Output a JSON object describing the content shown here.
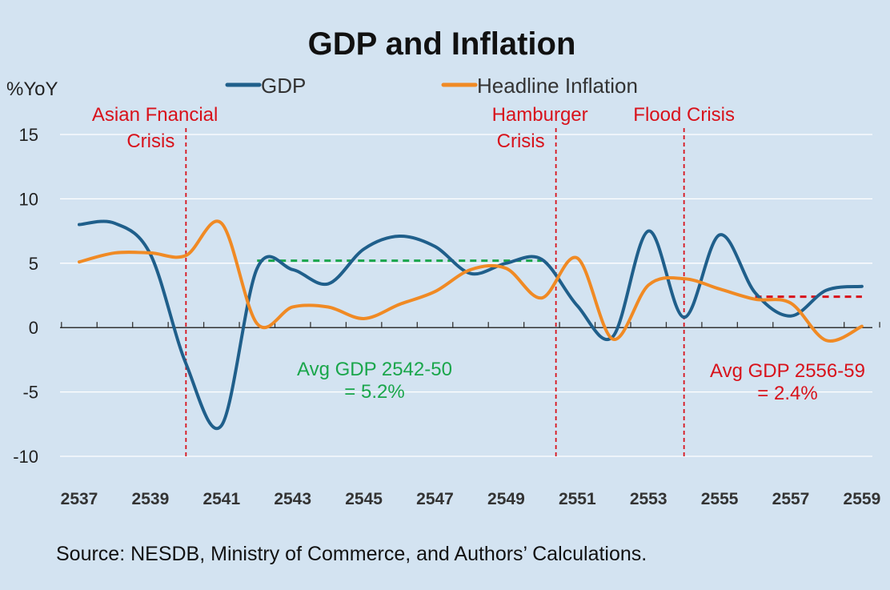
{
  "chart_data": {
    "type": "line",
    "title": "GDP and Inflation",
    "ylabel": "%YoY",
    "xlabel": "",
    "ylim": [
      -10,
      15
    ],
    "yticks": [
      "15",
      "10",
      "5",
      "0",
      "-5",
      "-10"
    ],
    "x_tick_labels": [
      "2537",
      "2539",
      "2541",
      "2543",
      "2545",
      "2547",
      "2549",
      "2551",
      "2553",
      "2555",
      "2557",
      "2559"
    ],
    "legend_position": "top-center",
    "grid": "horizontal",
    "series": [
      {
        "name": "GDP",
        "color": "#1f5f8b",
        "x": [
          2537,
          2538,
          2539,
          2540,
          2541,
          2542,
          2543,
          2544,
          2545,
          2546,
          2547,
          2548,
          2549,
          2550,
          2551,
          2552,
          2553,
          2554,
          2555,
          2556,
          2557,
          2558,
          2559
        ],
        "values": [
          8.0,
          8.1,
          5.7,
          -2.8,
          -7.6,
          4.6,
          4.5,
          3.4,
          6.1,
          7.1,
          6.3,
          4.2,
          5.0,
          5.3,
          1.7,
          -0.7,
          7.5,
          0.8,
          7.2,
          2.7,
          0.9,
          2.9,
          3.2
        ]
      },
      {
        "name": "Headline Inflation",
        "color": "#f08a24",
        "x": [
          2537,
          2538,
          2539,
          2540,
          2541,
          2542,
          2543,
          2544,
          2545,
          2546,
          2547,
          2548,
          2549,
          2550,
          2551,
          2552,
          2553,
          2554,
          2555,
          2556,
          2557,
          2558,
          2559
        ],
        "values": [
          5.1,
          5.8,
          5.8,
          5.6,
          8.1,
          0.3,
          1.6,
          1.6,
          0.7,
          1.8,
          2.8,
          4.5,
          4.6,
          2.3,
          5.4,
          -0.9,
          3.3,
          3.8,
          3.0,
          2.2,
          1.9,
          -1.0,
          0.1
        ]
      }
    ],
    "reference_lines": [
      {
        "x": 2540,
        "label_lines": [
          "Asian Fnancial",
          "Crisis"
        ],
        "color": "#d8121b"
      },
      {
        "x": 2550.4,
        "label_lines": [
          "Hamburger",
          "Crisis"
        ],
        "color": "#d8121b"
      },
      {
        "x": 2554,
        "label_lines": [
          "Flood Crisis"
        ],
        "color": "#d8121b"
      }
    ],
    "average_lines": [
      {
        "x_start": 2542,
        "x_end": 2550,
        "y": 5.2,
        "color": "#1aa64b",
        "label_lines": [
          "Avg GDP 2542-50",
          "= 5.2%"
        ]
      },
      {
        "x_start": 2556,
        "x_end": 2559,
        "y": 2.4,
        "color": "#d8121b",
        "label_lines": [
          "Avg GDP 2556-59",
          "= 2.4%"
        ]
      }
    ]
  },
  "source": "Source: NESDB, Ministry of Commerce, and Authors’ Calculations."
}
